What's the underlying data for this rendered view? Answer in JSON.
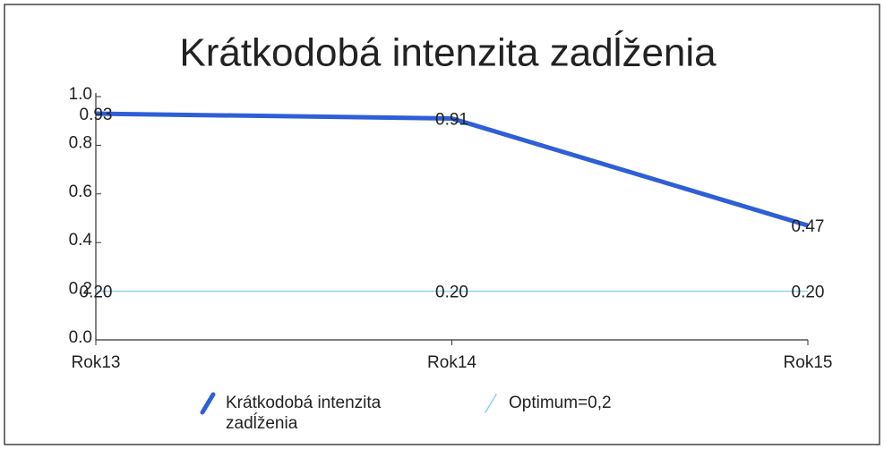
{
  "chart_data": {
    "type": "line",
    "title": "Krátkodobá intenzita zadĺženia",
    "categories": [
      "Rok13",
      "Rok14",
      "Rok15"
    ],
    "series": [
      {
        "name": "Krátkodobá intenzita zadĺženia",
        "color": "#2f5fd6",
        "values": [
          0.93,
          0.91,
          0.47
        ]
      },
      {
        "name": "Optimum=0,2",
        "color": "#8fd0e8",
        "values": [
          0.2,
          0.2,
          0.2
        ],
        "value_labels": [
          "0.20",
          "0.20",
          "0.20"
        ]
      }
    ],
    "ylim": [
      0,
      1
    ],
    "yticks": [
      {
        "value": 0,
        "label": "0.0"
      },
      0.2,
      0.4,
      0.6,
      0.8,
      {
        "value": 1,
        "label": "1.0"
      }
    ],
    "legend": "bottom"
  }
}
